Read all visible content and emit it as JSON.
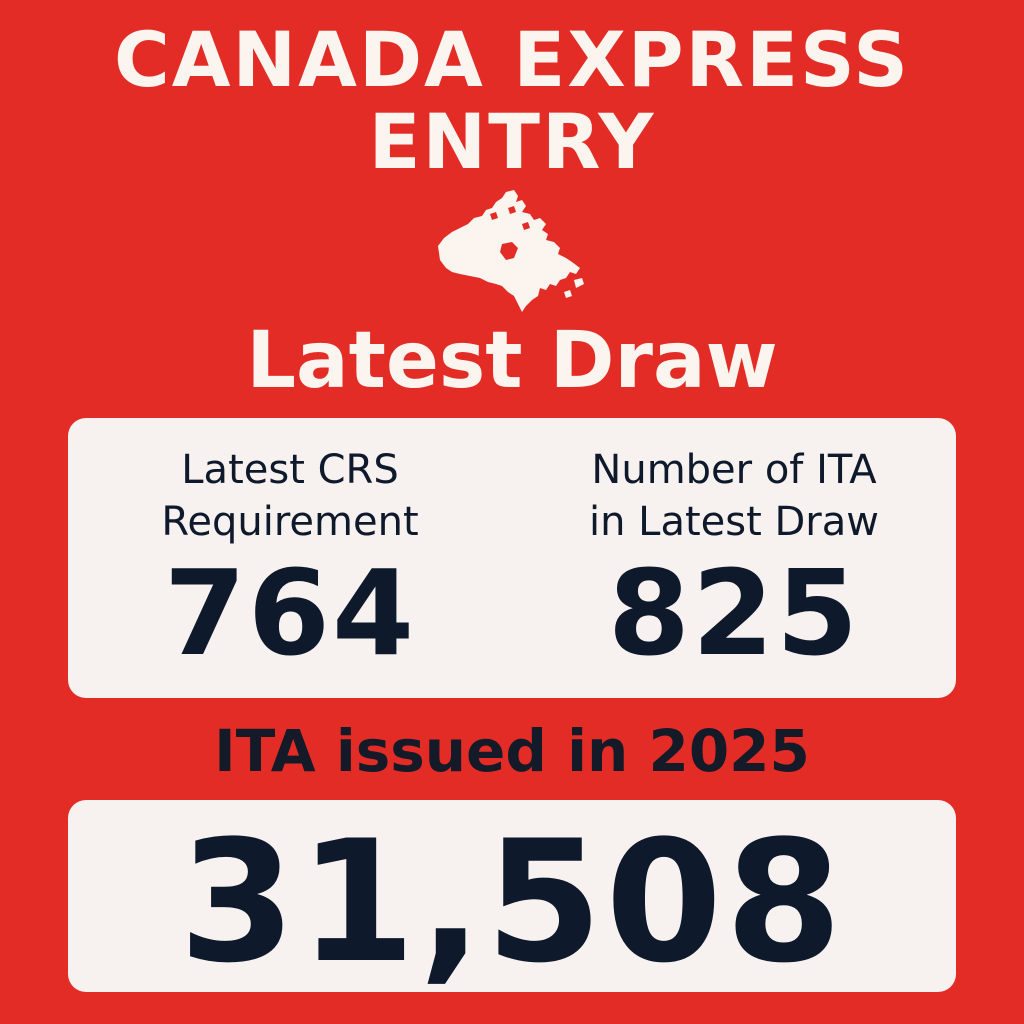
{
  "header": {
    "title_line_1": "CANADA EXPRESS",
    "title_line_2": "ENTRY",
    "map_icon": "canada-map-icon",
    "subtitle": "Latest Draw"
  },
  "stats": {
    "crs": {
      "label_line_1": "Latest CRS",
      "label_line_2": "Requirement",
      "value": "764"
    },
    "ita": {
      "label_line_1": "Number of ITA",
      "label_line_2": "in Latest Draw",
      "value": "825"
    }
  },
  "yearly": {
    "label": "ITA issued in 2025",
    "value": "31,508"
  },
  "colors": {
    "background": "#e42c26",
    "card": "#f7f2f0",
    "text_light": "#fbf4ef",
    "text_dark": "#0e1a2b"
  }
}
